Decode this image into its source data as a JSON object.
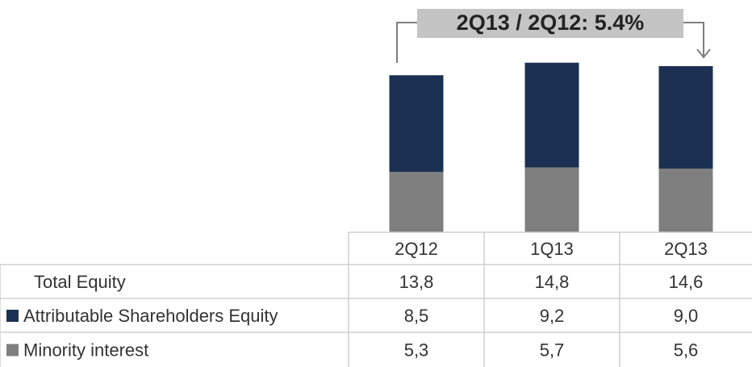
{
  "chart_data": {
    "type": "stacked_bar",
    "annotation": "2Q13 / 2Q12: 5.4%",
    "categories": [
      "2Q12",
      "1Q13",
      "2Q13"
    ],
    "total": {
      "name": "Total Equity",
      "values": [
        13.8,
        14.8,
        14.6
      ],
      "value_labels": [
        "13,8",
        "14,8",
        "14,6"
      ]
    },
    "series": [
      {
        "name": "Attributable Shareholders Equity",
        "color": "#1b3052",
        "values": [
          8.5,
          9.2,
          9.0
        ],
        "value_labels": [
          "8,5",
          "9,2",
          "9,0"
        ]
      },
      {
        "name": "Minority interest",
        "color": "#7f7f7f",
        "values": [
          5.3,
          5.7,
          5.6
        ],
        "value_labels": [
          "5,3",
          "5,7",
          "5,6"
        ]
      }
    ],
    "ylim": [
      0,
      18
    ]
  }
}
